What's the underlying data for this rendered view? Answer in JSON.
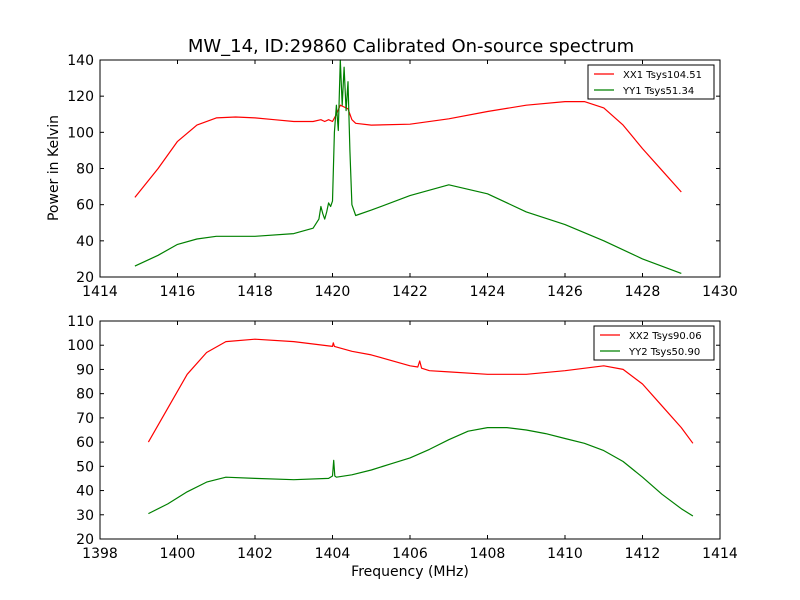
{
  "figure": {
    "title": "MW_14, ID:29860 Calibrated On-source spectrum",
    "xlabel": "Frequency (MHz)",
    "ylabel": "Power in Kelvin"
  },
  "chart_data": [
    {
      "type": "line",
      "title": "MW_14, ID:29860 Calibrated On-source spectrum",
      "xlabel": "",
      "ylabel": "Power in Kelvin",
      "xlim": [
        1414,
        1430
      ],
      "ylim": [
        20,
        140
      ],
      "xticks": [
        1414,
        1416,
        1418,
        1420,
        1422,
        1424,
        1426,
        1428,
        1430
      ],
      "yticks": [
        20,
        40,
        60,
        80,
        100,
        120,
        140
      ],
      "grid": false,
      "legend": "top-right",
      "series": [
        {
          "name": "XX1 Tsys104.51",
          "color": "#ff0000",
          "x": [
            1414.9,
            1415.5,
            1416,
            1416.5,
            1417,
            1417.5,
            1418,
            1418.5,
            1419,
            1419.5,
            1419.7,
            1419.8,
            1419.9,
            1420.0,
            1420.1,
            1420.2,
            1420.3,
            1420.4,
            1420.5,
            1420.6,
            1421,
            1422,
            1423,
            1424,
            1425,
            1426,
            1426.5,
            1427,
            1427.5,
            1428,
            1428.5,
            1429
          ],
          "y": [
            64,
            80,
            95,
            104,
            108,
            108.5,
            108,
            107,
            106,
            106,
            107,
            106,
            107,
            106,
            110,
            115,
            114,
            113,
            107,
            105,
            104,
            104.5,
            107.5,
            111.5,
            115,
            117,
            117,
            113.5,
            104,
            91,
            79,
            67
          ]
        },
        {
          "name": "YY1 Tsys51.34",
          "color": "#008000",
          "x": [
            1414.9,
            1415.5,
            1416,
            1416.5,
            1417,
            1418,
            1419,
            1419.5,
            1419.65,
            1419.7,
            1419.75,
            1419.8,
            1419.85,
            1419.9,
            1419.95,
            1420.0,
            1420.05,
            1420.1,
            1420.15,
            1420.2,
            1420.25,
            1420.3,
            1420.35,
            1420.4,
            1420.45,
            1420.5,
            1420.6,
            1421,
            1422,
            1423,
            1424,
            1425,
            1426,
            1427,
            1428,
            1429
          ],
          "y": [
            26,
            32,
            38,
            41,
            42.5,
            42.5,
            44,
            47,
            52,
            59,
            55,
            52,
            56,
            61,
            59,
            62,
            100,
            115,
            101,
            140,
            115,
            136,
            112,
            128,
            90,
            60,
            54,
            57,
            65,
            71,
            66,
            56,
            49,
            40,
            30,
            22
          ]
        }
      ]
    },
    {
      "type": "line",
      "title": "",
      "xlabel": "Frequency (MHz)",
      "ylabel": "",
      "xlim": [
        1398,
        1414
      ],
      "ylim": [
        20,
        110
      ],
      "xticks": [
        1398,
        1400,
        1402,
        1404,
        1406,
        1408,
        1410,
        1412,
        1414
      ],
      "yticks": [
        20,
        30,
        40,
        50,
        60,
        70,
        80,
        90,
        100,
        110
      ],
      "grid": false,
      "legend": "top-right",
      "series": [
        {
          "name": "XX2 Tsys90.06",
          "color": "#ff0000",
          "x": [
            1399.25,
            1399.75,
            1400.25,
            1400.75,
            1401.25,
            1402,
            1403,
            1404,
            1404.02,
            1404.05,
            1404.5,
            1405,
            1406,
            1406.2,
            1406.25,
            1406.3,
            1406.5,
            1407,
            1408,
            1409,
            1410,
            1411,
            1411.5,
            1412,
            1412.5,
            1413,
            1413.3
          ],
          "y": [
            60,
            74,
            88,
            97,
            101.5,
            102.5,
            101.5,
            99.5,
            101,
            99.5,
            97.5,
            96,
            91.5,
            91,
            93.5,
            90.5,
            89.5,
            89,
            88,
            88,
            89.5,
            91.5,
            90,
            84,
            75,
            66,
            59.5
          ]
        },
        {
          "name": "YY2 Tsys50.90",
          "color": "#008000",
          "x": [
            1399.25,
            1399.75,
            1400.25,
            1400.75,
            1401.25,
            1402,
            1403,
            1403.9,
            1404,
            1404.03,
            1404.06,
            1404.1,
            1404.5,
            1405,
            1405.5,
            1406,
            1406.5,
            1407,
            1407.5,
            1408,
            1408.5,
            1409,
            1409.5,
            1410,
            1410.5,
            1411,
            1411.5,
            1412,
            1412.5,
            1413,
            1413.3
          ],
          "y": [
            30.5,
            34.5,
            39.5,
            43.5,
            45.5,
            45,
            44.5,
            45,
            46,
            52.5,
            46,
            45.5,
            46.5,
            48.5,
            51,
            53.5,
            57,
            61,
            64.5,
            66,
            66,
            65,
            63.5,
            61.5,
            59.5,
            56.5,
            52,
            45.5,
            38.5,
            32.5,
            29.5
          ]
        }
      ]
    }
  ]
}
